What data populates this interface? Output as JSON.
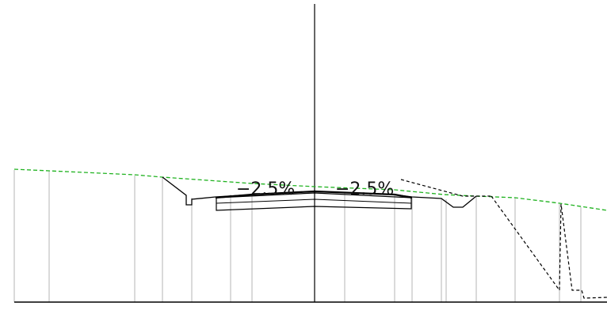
{
  "drawing": {
    "slope_left": "−2.5%",
    "slope_right": "−2.5%"
  },
  "colors": {
    "ground_line": "#1fb21f",
    "section_line": "#000000",
    "station_line": "#b4b4b4"
  }
}
